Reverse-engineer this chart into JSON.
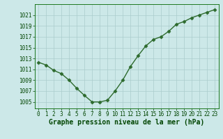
{
  "x": [
    0,
    1,
    2,
    3,
    4,
    5,
    6,
    7,
    8,
    9,
    10,
    11,
    12,
    13,
    14,
    15,
    16,
    17,
    18,
    19,
    20,
    21,
    22,
    23
  ],
  "y": [
    1012.3,
    1011.8,
    1010.8,
    1010.2,
    1009.0,
    1007.5,
    1006.2,
    1005.0,
    1005.0,
    1005.3,
    1007.0,
    1009.0,
    1011.5,
    1013.5,
    1015.3,
    1016.5,
    1017.0,
    1018.0,
    1019.3,
    1019.8,
    1020.5,
    1021.0,
    1021.5,
    1022.0
  ],
  "line_color": "#2d6a2d",
  "marker": "D",
  "marker_size": 2.5,
  "bg_color": "#cce8e8",
  "grid_color": "#aacccc",
  "xlabel": "Graphe pression niveau de la mer (hPa)",
  "xlabel_color": "#004400",
  "xlabel_fontsize": 7,
  "ytick_labels": [
    1005,
    1007,
    1009,
    1011,
    1013,
    1015,
    1017,
    1019,
    1021
  ],
  "ylim": [
    1003.8,
    1023.0
  ],
  "xlim": [
    -0.5,
    23.5
  ],
  "xtick_labels": [
    "0",
    "1",
    "2",
    "3",
    "4",
    "5",
    "6",
    "7",
    "8",
    "9",
    "10",
    "11",
    "12",
    "13",
    "14",
    "15",
    "16",
    "17",
    "18",
    "19",
    "20",
    "21",
    "22",
    "23"
  ],
  "tick_color": "#004400",
  "tick_fontsize": 5.5,
  "spine_color": "#006600",
  "linewidth": 1.0
}
